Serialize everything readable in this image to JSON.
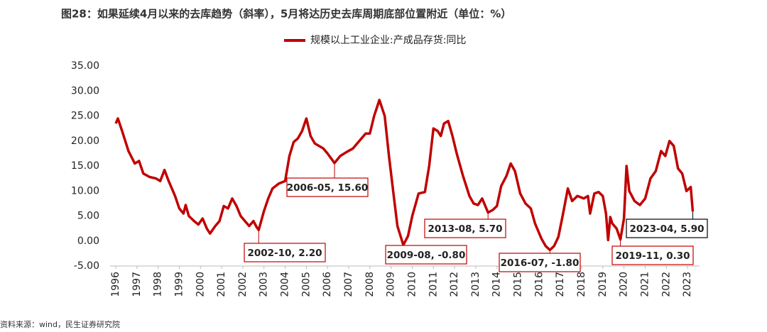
{
  "chart_data": {
    "type": "line",
    "title": "图28：如果延续4月以来的去库趋势（斜率），5月将达历史去库周期底部位置附近（单位：%）",
    "source": "资料来源：wind，民生证券研究院",
    "xlim": [
      1996,
      2023.5
    ],
    "xticks": [
      1996,
      1997,
      1998,
      1999,
      2000,
      2001,
      2002,
      2003,
      2004,
      2005,
      2006,
      2007,
      2008,
      2009,
      2010,
      2011,
      2012,
      2013,
      2014,
      2015,
      2016,
      2017,
      2018,
      2019,
      2020,
      2021,
      2022,
      2023
    ],
    "ylim": [
      -5,
      35
    ],
    "yticks": [
      {
        "value": -5,
        "label": "-5.00"
      },
      {
        "value": 0,
        "label": "0.00"
      },
      {
        "value": 5,
        "label": "5.00"
      },
      {
        "value": 10,
        "label": "10.00"
      },
      {
        "value": 15,
        "label": "15.00"
      },
      {
        "value": 20,
        "label": "20.00"
      },
      {
        "value": 25,
        "label": "25.00"
      },
      {
        "value": 30,
        "label": "30.00"
      },
      {
        "value": 35,
        "label": "35.00"
      }
    ],
    "series": [
      {
        "name": "规模以上工业企业:产成品存货:同比",
        "color": "#c00000",
        "x": [
          1996.0,
          1996.1,
          1996.3,
          1996.6,
          1996.9,
          1997.1,
          1997.3,
          1997.6,
          1997.9,
          1998.1,
          1998.3,
          1998.5,
          1998.8,
          1999.0,
          1999.2,
          1999.3,
          1999.45,
          1999.7,
          1999.9,
          2000.1,
          2000.3,
          2000.45,
          2000.7,
          2000.9,
          2001.1,
          2001.3,
          2001.5,
          2001.7,
          2001.9,
          2002.1,
          2002.3,
          2002.5,
          2002.65,
          2002.75,
          2003.0,
          2003.2,
          2003.4,
          2003.7,
          2004.0,
          2004.2,
          2004.4,
          2004.6,
          2004.8,
          2005.0,
          2005.2,
          2005.4,
          2005.6,
          2005.8,
          2006.0,
          2006.33,
          2006.6,
          2006.9,
          2007.2,
          2007.5,
          2007.8,
          2008.0,
          2008.2,
          2008.45,
          2008.7,
          2008.9,
          2009.1,
          2009.3,
          2009.58,
          2009.8,
          2010.0,
          2010.3,
          2010.6,
          2010.8,
          2011.0,
          2011.2,
          2011.35,
          2011.5,
          2011.7,
          2011.9,
          2012.1,
          2012.4,
          2012.7,
          2012.9,
          2013.1,
          2013.3,
          2013.58,
          2013.8,
          2014.0,
          2014.2,
          2014.45,
          2014.65,
          2014.85,
          2015.1,
          2015.35,
          2015.6,
          2015.8,
          2016.1,
          2016.3,
          2016.5,
          2016.7,
          2016.9,
          2017.1,
          2017.35,
          2017.55,
          2017.8,
          2018.1,
          2018.3,
          2018.4,
          2018.6,
          2018.8,
          2019.0,
          2019.15,
          2019.25,
          2019.35,
          2019.45,
          2019.65,
          2019.83,
          2020.0,
          2020.12,
          2020.25,
          2020.5,
          2020.75,
          2021.0,
          2021.25,
          2021.5,
          2021.75,
          2021.95,
          2022.15,
          2022.35,
          2022.55,
          2022.75,
          2022.95,
          2023.15,
          2023.25
        ],
        "values": [
          23.5,
          24.5,
          22,
          18,
          15.5,
          16,
          13.5,
          12.8,
          12.5,
          12,
          14.2,
          12,
          9,
          6.5,
          5.5,
          7.2,
          5,
          4,
          3.3,
          4.5,
          2.5,
          1.5,
          3,
          4,
          7,
          6.5,
          8.5,
          7,
          5,
          4,
          3,
          4,
          2.8,
          2.2,
          6,
          8.5,
          10.5,
          11.5,
          12,
          17,
          19.8,
          20.5,
          22,
          24.5,
          21,
          19.5,
          19,
          18.5,
          17.5,
          15.6,
          17,
          17.8,
          18.5,
          20,
          21.5,
          21.5,
          25,
          28.2,
          25,
          17,
          10,
          3,
          -0.8,
          1,
          5,
          9.5,
          9.8,
          15,
          22.5,
          22,
          21,
          23.5,
          24,
          21,
          17.5,
          13,
          9,
          7.5,
          7.2,
          8.5,
          5.7,
          6.2,
          7,
          11,
          13,
          15.5,
          14,
          9.5,
          7.5,
          6.5,
          3.5,
          0.5,
          -1,
          -1.8,
          -1,
          0.8,
          5,
          10.5,
          8,
          9,
          8.5,
          9,
          5.5,
          9.5,
          9.8,
          9,
          5.5,
          0.2,
          4.8,
          3.5,
          2.5,
          0.3,
          4.5,
          15,
          10,
          8,
          7.2,
          8.5,
          12.5,
          14,
          18,
          17,
          20,
          19,
          14.5,
          13.5,
          10,
          10.8,
          5.9
        ]
      }
    ],
    "annotations": [
      {
        "label": "2002-10, 2.20",
        "x": 2002.75,
        "y": 2.2,
        "color": "#c00000"
      },
      {
        "label": "2006-05, 15.60",
        "x": 2006.33,
        "y": 15.6,
        "color": "#c00000"
      },
      {
        "label": "2009-08, -0.80",
        "x": 2009.58,
        "y": -0.8,
        "color": "#c00000"
      },
      {
        "label": "2013-08, 5.70",
        "x": 2013.58,
        "y": 5.7,
        "color": "#c00000"
      },
      {
        "label": "2016-07, -1.80",
        "x": 2016.5,
        "y": -1.8,
        "color": "#c00000"
      },
      {
        "label": "2019-11, 0.30",
        "x": 2019.83,
        "y": 0.3,
        "color": "#c00000"
      },
      {
        "label": "2023-04, 5.90",
        "x": 2023.25,
        "y": 5.9,
        "color": "#000000"
      }
    ]
  }
}
